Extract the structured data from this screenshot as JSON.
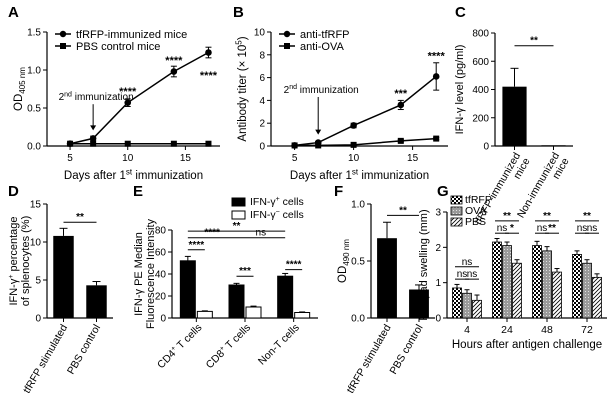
{
  "chart_data": [
    {
      "panel": "A",
      "type": "line",
      "xlabel_parts": [
        "Days after 1",
        "st",
        " immunization"
      ],
      "ylabel_parts": [
        "OD",
        "405 nm"
      ],
      "xlim": [
        3,
        18
      ],
      "ylim": [
        0,
        1.5
      ],
      "xticks": [
        "5",
        "10",
        "15"
      ],
      "yticks": [
        "0.0",
        "0.5",
        "1.0",
        "1.5"
      ],
      "series": [
        {
          "name": "tfRFP-immunized mice",
          "marker": "circle",
          "x": [
            5,
            7,
            10,
            14,
            17
          ],
          "y": [
            0.03,
            0.1,
            0.57,
            0.98,
            1.23
          ],
          "err": [
            0.01,
            0.03,
            0.05,
            0.07,
            0.07
          ]
        },
        {
          "name": "PBS control mice",
          "marker": "square",
          "x": [
            5,
            7,
            10,
            14,
            17
          ],
          "y": [
            0.03,
            0.03,
            0.03,
            0.03,
            0.03
          ],
          "err": [
            0,
            0,
            0,
            0,
            0
          ]
        }
      ],
      "annotations": [
        {
          "text_parts": [
            "2",
            "nd",
            " immunization"
          ],
          "x": 7,
          "y": 0.55
        },
        {
          "text": "****",
          "x": 10,
          "y": 0.67
        },
        {
          "text": "****",
          "x": 14,
          "y": 1.08
        },
        {
          "text": "****",
          "x": 17,
          "y": 0.88
        }
      ]
    },
    {
      "panel": "B",
      "type": "line",
      "xlabel_parts": [
        "Days after 1",
        "st",
        " immunization"
      ],
      "ylabel_parts": [
        "Antibody titer (× 10",
        "5",
        ")"
      ],
      "xlim": [
        3,
        18
      ],
      "ylim": [
        0,
        10
      ],
      "xticks": [
        "5",
        "10",
        "15"
      ],
      "yticks": [
        "0",
        "2",
        "4",
        "6",
        "8",
        "10"
      ],
      "series": [
        {
          "name": "anti-tfRFP",
          "marker": "circle",
          "x": [
            5,
            7,
            10,
            14,
            17
          ],
          "y": [
            0.05,
            0.3,
            1.8,
            3.6,
            6.1
          ],
          "err": [
            0.03,
            0.1,
            0.2,
            0.4,
            1.2
          ]
        },
        {
          "name": "anti-OVA",
          "marker": "square",
          "x": [
            5,
            7,
            10,
            14,
            17
          ],
          "y": [
            0.05,
            0.05,
            0.1,
            0.45,
            0.65
          ],
          "err": [
            0,
            0,
            0.05,
            0.1,
            0.1
          ]
        }
      ],
      "annotations": [
        {
          "text_parts": [
            "2",
            "nd",
            " immunization"
          ],
          "x": 7,
          "y": 4.3
        },
        {
          "text": "***",
          "x": 14,
          "y": 4.3
        },
        {
          "text": "****",
          "x": 17,
          "y": 7.6
        }
      ]
    },
    {
      "panel": "C",
      "type": "bar",
      "ylabel": "IFN-γ level (pg/ml)",
      "ylim": [
        0,
        800
      ],
      "yticks": [
        "0",
        "200",
        "400",
        "600",
        "800"
      ],
      "categories": [
        "tfRFP-immunized mice",
        "Non-immunized mice"
      ],
      "category_lines": [
        [
          "tfRFP-immunized",
          "mice"
        ],
        [
          "Non-immunized",
          "mice"
        ]
      ],
      "values": [
        420,
        5
      ],
      "err": [
        130,
        0
      ],
      "significance": [
        {
          "text": "**",
          "between": [
            0,
            1
          ],
          "y": 710
        }
      ]
    },
    {
      "panel": "D",
      "type": "bar",
      "ylabel_lines": [
        [
          "IFN-γ",
          "+",
          " percentage"
        ],
        [
          "of splenocytes (%)"
        ]
      ],
      "ylim": [
        0,
        15
      ],
      "yticks": [
        "0",
        "5",
        "10",
        "15"
      ],
      "categories": [
        "tfRFP stimulated",
        "PBS control"
      ],
      "values": [
        10.8,
        4.3
      ],
      "err": [
        1.0,
        0.5
      ],
      "significance": [
        {
          "text": "**",
          "between": [
            0,
            1
          ],
          "y": 12.6
        }
      ]
    },
    {
      "panel": "E",
      "type": "bar",
      "ylabel_lines": [
        "IFN-γ PE Median",
        "Fluorescence Intensity"
      ],
      "ylim": [
        0,
        80
      ],
      "yticks": [
        "0",
        "20",
        "40",
        "60",
        "80"
      ],
      "categories": [
        "CD4+ T cells",
        "CD8+ T cells",
        "Non-T cells"
      ],
      "category_parts": [
        [
          "CD4",
          "+",
          " T cells"
        ],
        [
          "CD8",
          "+",
          " T cells"
        ],
        [
          "Non-T cells",
          "",
          ""
        ]
      ],
      "legend": [
        {
          "parts": [
            "IFN-γ",
            "+",
            " cells"
          ],
          "fill": "#000000"
        },
        {
          "parts": [
            "IFN-γ",
            "−",
            " cells"
          ],
          "fill": "#ffffff"
        }
      ],
      "series": [
        {
          "name": "IFN-γ+ cells",
          "values": [
            52,
            30,
            38
          ],
          "err": [
            4,
            1.5,
            2.5
          ],
          "fill": "#000000"
        },
        {
          "name": "IFN-γ- cells",
          "values": [
            6,
            10,
            5
          ],
          "err": [
            0.5,
            0.8,
            0.5
          ],
          "fill": "#ffffff"
        }
      ],
      "significance": [
        {
          "text": "****",
          "from": [
            0,
            0
          ],
          "to": [
            0,
            1
          ],
          "y": 62
        },
        {
          "text": "***",
          "from": [
            1,
            0
          ],
          "to": [
            1,
            1
          ],
          "y": 38
        },
        {
          "text": "****",
          "from": [
            2,
            0
          ],
          "to": [
            2,
            1
          ],
          "y": 44
        },
        {
          "text": "****",
          "from": [
            0,
            0
          ],
          "to": [
            1,
            0
          ],
          "y": 73
        },
        {
          "text": "ns",
          "from": [
            1,
            0
          ],
          "to": [
            2,
            0
          ],
          "y": 73
        },
        {
          "text": "**",
          "from": [
            0,
            0
          ],
          "to": [
            2,
            0
          ],
          "y": 79
        }
      ]
    },
    {
      "panel": "F",
      "type": "bar",
      "ylabel_parts": [
        "OD",
        "490 nm"
      ],
      "ylim": [
        0,
        1.0
      ],
      "yticks": [
        "0.0",
        "0.5",
        "1.0"
      ],
      "categories": [
        "tfRFP stimulated",
        "PBS control"
      ],
      "values": [
        0.7,
        0.25
      ],
      "err": [
        0.14,
        0.04
      ],
      "significance": [
        {
          "text": "**",
          "between": [
            0,
            1
          ],
          "y": 0.9
        }
      ]
    },
    {
      "panel": "G",
      "type": "bar",
      "xlabel": "Hours after antigen challenge",
      "ylabel": "Footpad swelling (mm)",
      "ylim": [
        0,
        3
      ],
      "yticks": [
        "0",
        "1",
        "2",
        "3"
      ],
      "categories": [
        "4",
        "24",
        "48",
        "72"
      ],
      "series": [
        {
          "name": "tfRFP",
          "pattern": "checker",
          "values": [
            0.85,
            2.15,
            2.05,
            1.8
          ],
          "err": [
            0.1,
            0.1,
            0.12,
            0.1
          ]
        },
        {
          "name": "OVA",
          "pattern": "gray",
          "values": [
            0.7,
            2.05,
            1.9,
            1.55
          ],
          "err": [
            0.1,
            0.1,
            0.12,
            0.1
          ]
        },
        {
          "name": "PBS",
          "pattern": "hatch",
          "values": [
            0.5,
            1.55,
            1.3,
            1.15
          ],
          "err": [
            0.15,
            0.1,
            0.1,
            0.1
          ]
        }
      ],
      "significance": [
        {
          "group": 0,
          "from": 0,
          "to": 2,
          "text": "ns",
          "y": 1.45
        },
        {
          "group": 0,
          "from": 0,
          "to": 1,
          "text": "ns",
          "y": 1.1
        },
        {
          "group": 0,
          "from": 1,
          "to": 2,
          "text": "ns",
          "y": 1.1
        },
        {
          "group": 1,
          "from": 0,
          "to": 2,
          "text": "**",
          "y": 2.75
        },
        {
          "group": 1,
          "from": 0,
          "to": 1,
          "text": "ns",
          "y": 2.4
        },
        {
          "group": 1,
          "from": 1,
          "to": 2,
          "text": "*",
          "y": 2.4
        },
        {
          "group": 2,
          "from": 0,
          "to": 2,
          "text": "**",
          "y": 2.75
        },
        {
          "group": 2,
          "from": 0,
          "to": 1,
          "text": "ns",
          "y": 2.4
        },
        {
          "group": 2,
          "from": 1,
          "to": 2,
          "text": "**",
          "y": 2.4
        },
        {
          "group": 3,
          "from": 0,
          "to": 2,
          "text": "**",
          "y": 2.75
        },
        {
          "group": 3,
          "from": 0,
          "to": 1,
          "text": "ns",
          "y": 2.4
        },
        {
          "group": 3,
          "from": 1,
          "to": 2,
          "text": "ns",
          "y": 2.4
        }
      ]
    }
  ]
}
